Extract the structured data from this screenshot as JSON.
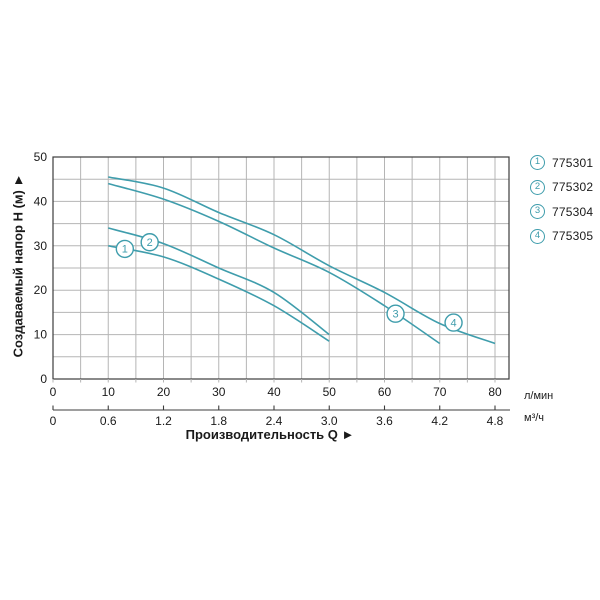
{
  "chart_data": {
    "type": "line",
    "title": "",
    "xlabel": "Производительность Q ►",
    "ylabel": "Создаваемый напор H (м) ►",
    "x_axis": {
      "primary_unit": "л/мин",
      "primary_ticks": [
        "0",
        "10",
        "20",
        "30",
        "40",
        "50",
        "60",
        "70",
        "80"
      ],
      "secondary_unit": "м³/ч",
      "secondary_ticks": [
        "0",
        "0.6",
        "1.2",
        "1.8",
        "2.4",
        "3.0",
        "3.6",
        "4.2",
        "4.8"
      ],
      "range_lmin": [
        0,
        82.5
      ]
    },
    "y_axis": {
      "ticks": [
        "0",
        "10",
        "20",
        "30",
        "40",
        "50"
      ],
      "range": [
        0,
        50
      ]
    },
    "grid": {
      "on": true,
      "step_lmin": 5,
      "step_m": 5
    },
    "legend_position": "top-right-outside",
    "series": [
      {
        "num": "1",
        "name": "775301",
        "label_pos": [
          13,
          29.3
        ],
        "points_lmin_m": [
          [
            10,
            30
          ],
          [
            20,
            27.5
          ],
          [
            30,
            22.5
          ],
          [
            40,
            16.5
          ],
          [
            50,
            8.5
          ]
        ]
      },
      {
        "num": "2",
        "name": "775302",
        "label_pos": [
          17.5,
          30.8
        ],
        "points_lmin_m": [
          [
            10,
            34
          ],
          [
            20,
            30.5
          ],
          [
            30,
            25
          ],
          [
            40,
            19.5
          ],
          [
            50,
            10
          ]
        ]
      },
      {
        "num": "3",
        "name": "775304",
        "label_pos": [
          62,
          14.7
        ],
        "points_lmin_m": [
          [
            10,
            44
          ],
          [
            20,
            40.5
          ],
          [
            30,
            35.5
          ],
          [
            40,
            29.5
          ],
          [
            50,
            24
          ],
          [
            60,
            16.5
          ],
          [
            70,
            8
          ]
        ]
      },
      {
        "num": "4",
        "name": "775305",
        "label_pos": [
          72.5,
          12.7
        ],
        "points_lmin_m": [
          [
            10,
            45.5
          ],
          [
            20,
            43
          ],
          [
            30,
            37.5
          ],
          [
            40,
            32.5
          ],
          [
            50,
            25.5
          ],
          [
            60,
            19.5
          ],
          [
            70,
            12.5
          ],
          [
            80,
            8
          ]
        ]
      }
    ],
    "colors": {
      "curve": "#3f9dac",
      "grid": "#b5b5b5",
      "axis": "#3c3c3c",
      "text": "#1a1a1a"
    }
  },
  "legend": {
    "items": [
      {
        "num": "1",
        "code": "775301"
      },
      {
        "num": "2",
        "code": "775302"
      },
      {
        "num": "3",
        "code": "775304"
      },
      {
        "num": "4",
        "code": "775305"
      }
    ]
  }
}
